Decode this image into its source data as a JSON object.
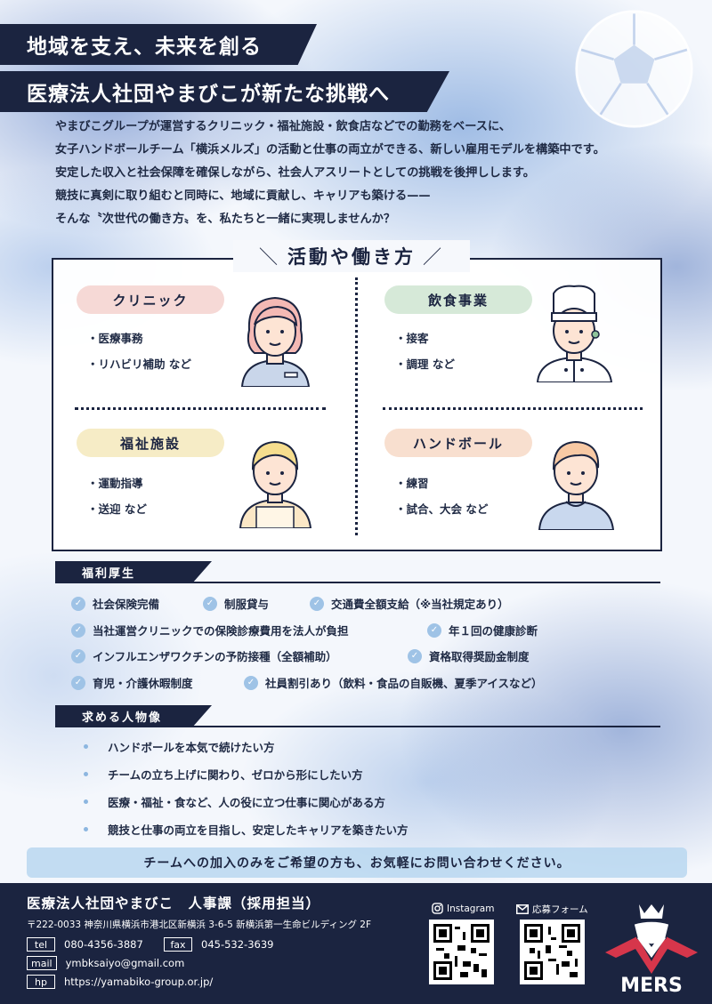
{
  "header": {
    "title_line1": "地域を支え、未来を創る",
    "title_line2": "医療法人社団やまびこが新たな挑戦へ"
  },
  "intro": [
    "やまびこグループが運営するクリニック・福祉施設・飲食店などでの勤務をベースに、",
    "女子ハンドボールチーム「横浜メルズ」の活動と仕事の両立ができる、新しい雇用モデルを構築中です。",
    "安定した収入と社会保障を確保しながら、社会人アスリートとしての挑戦を後押しします。",
    "競技に真剣に取り組むと同時に、地域に貢献し、キャリアも築ける——",
    "そんな〝次世代の働き方〟を、私たちと一緒に実現しませんか？"
  ],
  "activities": {
    "heading": "活動や働き方",
    "cells": [
      {
        "title": "クリニック",
        "color": "#f6d9d6",
        "items": [
          "・医療事務",
          "・リハビリ補助 など"
        ]
      },
      {
        "title": "飲食事業",
        "color": "#d6e9d8",
        "items": [
          "・接客",
          "・調理 など"
        ]
      },
      {
        "title": "福祉施設",
        "color": "#f6ecc6",
        "items": [
          "・運動指導",
          "・送迎 など"
        ]
      },
      {
        "title": "ハンドボール",
        "color": "#f8dfcf",
        "items": [
          "・練習",
          "・試合、大会 など"
        ]
      }
    ]
  },
  "benefits": {
    "heading": "福利厚生",
    "items": [
      "社会保険完備",
      "制服貸与",
      "交通費全額支給（※当社規定あり）",
      "当社運営クリニックでの保険診療費用を法人が負担",
      "年１回の健康診断",
      "インフルエンザワクチンの予防接種（全額補助）",
      "資格取得奨励金制度",
      "育児・介護休暇制度",
      "社員割引あり（飲料・食品の自販機、夏季アイスなど）"
    ]
  },
  "wanted": {
    "heading": "求める人物像",
    "items": [
      "ハンドボールを本気で続けたい方",
      "チームの立ち上げに関わり、ゼロから形にしたい方",
      "医療・福祉・食など、人の役に立つ仕事に関心がある方",
      "競技と仕事の両立を目指し、安定したキャリアを築きたい方"
    ]
  },
  "note": "チームへの加入のみをご希望の方も、お気軽にお問い合わせください。",
  "footer": {
    "org": "医療法人社団やまびこ　人事課（採用担当）",
    "address": "〒222-0033 神奈川県横浜市港北区新横浜 3-6-5 新横浜第一生命ビルディング 2F",
    "tel_label": "tel",
    "tel": "080-4356-3887",
    "fax_label": "fax",
    "fax": "045-532-3639",
    "mail_label": "mail",
    "mail": "ymbksaiyo@gmail.com",
    "hp_label": "hp",
    "hp": "https://yamabiko-group.or.jp/",
    "instagram_label": "Instagram",
    "form_label": "応募フォーム",
    "logo_text": "MERS"
  },
  "colors": {
    "navy": "#1b2440",
    "check": "#9fc3e6",
    "note_bg": "#b9d7f0"
  }
}
